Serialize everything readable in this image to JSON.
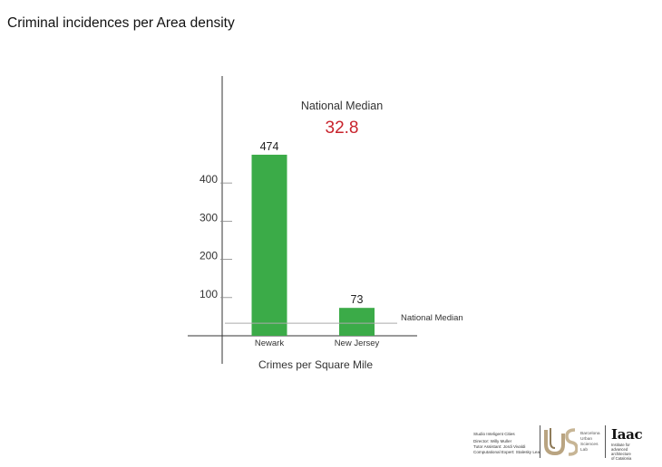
{
  "page": {
    "title": "Criminal incidences per Area density"
  },
  "chart_data": {
    "type": "bar",
    "categories": [
      "Newark",
      "New Jersey"
    ],
    "values": [
      474,
      73
    ],
    "value_labels": [
      "474",
      "73"
    ],
    "xlabel": "Crimes per Square Mile",
    "ylabel": "",
    "y_ticks": [
      100,
      200,
      300,
      400
    ],
    "y_tick_labels": [
      "100",
      "200",
      "300",
      "400"
    ],
    "ylim": [
      0,
      680
    ],
    "bar_color": "#3bab48",
    "reference_line": {
      "label": "National Median",
      "value": 32.8
    },
    "annotation": {
      "title": "National Median",
      "value": "32.8",
      "value_color": "#c8232c"
    },
    "grid": false
  },
  "footer": {
    "studio_title": "Studio Inteligent Cities",
    "credits": [
      "Director: Willy Muller",
      "Tutor Assistant: Jordi Vivaldi",
      "Computational Expert: Stalesky Leal"
    ],
    "lab_name_lines": [
      "Barcelona",
      "Urban",
      "Sciences",
      "Lab"
    ],
    "iaac_mark": "Iaac",
    "iaac_name_lines": [
      "Institute for",
      "advanced",
      "architecture",
      "of Catalonia"
    ]
  }
}
